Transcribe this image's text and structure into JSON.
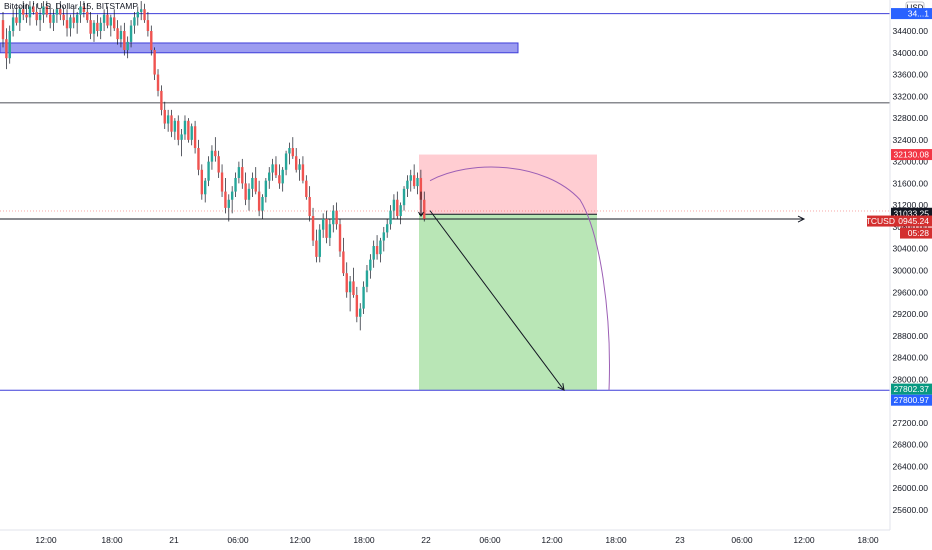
{
  "header": {
    "symbol_title": "Bitcoin / U.S. Dollar, 15, BITSTAMP"
  },
  "axis": {
    "currency_badge": "USD",
    "y_ticks": [
      "34400.00",
      "34000.00",
      "33600.00",
      "33200.00",
      "32800.00",
      "32400.00",
      "32000.00",
      "31600.00",
      "31200.00",
      "30800.00",
      "30400.00",
      "30000.00",
      "29600.00",
      "29200.00",
      "28800.00",
      "28400.00",
      "28000.00",
      "27600.00",
      "27200.00",
      "26800.00",
      "26400.00",
      "26000.00",
      "25600.00"
    ],
    "x_ticks": [
      "12:00",
      "18:00",
      "21",
      "06:00",
      "12:00",
      "18:00",
      "22",
      "06:00",
      "12:00",
      "18:00",
      "23",
      "06:00",
      "12:00",
      "18:00"
    ]
  },
  "price_tags": {
    "top_line": {
      "text": "34...1",
      "color": "#2962ff"
    },
    "stop_loss": {
      "text": "32130.08",
      "color": "#f23645"
    },
    "entry": {
      "text": "31033.25",
      "color": "#131722"
    },
    "symbol": {
      "text": "BTCUSD",
      "color": "#d32f2f"
    },
    "current": {
      "text": "30945.24",
      "color": "#d32f2f"
    },
    "countdown": {
      "text": "05:28",
      "color": "#d32f2f"
    },
    "target": {
      "text": "27802.37",
      "color": "#089981"
    },
    "support": {
      "text": "27800.97",
      "color": "#2962ff"
    }
  },
  "colors": {
    "up_candle": "#26a69a",
    "down_candle": "#ef5350",
    "wick": "#131722",
    "risk_zone": "#ffcdd2",
    "reward_zone": "#b9e6b6",
    "line_blue": "#3f3fd9",
    "zone_blue": "#9c9cf0",
    "arc": "#9c5fb5"
  },
  "chart_data": {
    "type": "candlestick",
    "title": "Bitcoin / U.S. Dollar, 15, BITSTAMP",
    "ylim": [
      25300,
      34950
    ],
    "y_scale": {
      "anchor_price_a": 34400,
      "anchor_price_b": 25600
    },
    "grid": false,
    "horizontal_levels": [
      {
        "price": 34720,
        "color": "blue",
        "label": "34...1"
      },
      {
        "price": 33080,
        "color": "black"
      },
      {
        "price": 30945.24,
        "color": "black",
        "style": "arrow-ray"
      },
      {
        "price": 27800.97,
        "color": "blue",
        "label": "27800.97"
      }
    ],
    "zone": {
      "price_top": 34180,
      "price_bottom": 34000,
      "color": "blue"
    },
    "position": {
      "type": "short",
      "entry": 31033.25,
      "stop": 32130.08,
      "target": 27802.37
    },
    "candles_ohlc": [
      [
        34600,
        34750,
        34100,
        34250
      ],
      [
        34250,
        34450,
        33700,
        33900
      ],
      [
        33900,
        34500,
        33800,
        34400
      ],
      [
        34400,
        34800,
        34300,
        34650
      ],
      [
        34650,
        34900,
        34500,
        34550
      ],
      [
        34550,
        34850,
        34400,
        34800
      ],
      [
        34800,
        34950,
        34600,
        34700
      ],
      [
        34700,
        34900,
        34550,
        34650
      ],
      [
        34650,
        34950,
        34500,
        34850
      ],
      [
        34850,
        34950,
        34700,
        34750
      ],
      [
        34750,
        34900,
        34500,
        34600
      ],
      [
        34600,
        34800,
        34400,
        34700
      ],
      [
        34700,
        34950,
        34550,
        34850
      ],
      [
        34850,
        34950,
        34650,
        34700
      ],
      [
        34700,
        34900,
        34450,
        34550
      ],
      [
        34550,
        34800,
        34400,
        34700
      ],
      [
        34700,
        34900,
        34550,
        34800
      ],
      [
        34800,
        34950,
        34600,
        34700
      ],
      [
        34700,
        34850,
        34500,
        34600
      ],
      [
        34600,
        34800,
        34300,
        34450
      ],
      [
        34450,
        34700,
        34300,
        34650
      ],
      [
        34650,
        34850,
        34450,
        34550
      ],
      [
        34550,
        34750,
        34350,
        34700
      ],
      [
        34700,
        34950,
        34550,
        34850
      ],
      [
        34850,
        34950,
        34650,
        34750
      ],
      [
        34750,
        34900,
        34550,
        34600
      ],
      [
        34600,
        34750,
        34250,
        34350
      ],
      [
        34350,
        34600,
        34200,
        34550
      ],
      [
        34550,
        34700,
        34300,
        34400
      ],
      [
        34400,
        34650,
        34250,
        34550
      ],
      [
        34550,
        34800,
        34400,
        34700
      ],
      [
        34700,
        34850,
        34450,
        34500
      ],
      [
        34500,
        34700,
        34300,
        34650
      ],
      [
        34650,
        34800,
        34400,
        34450
      ],
      [
        34450,
        34600,
        34150,
        34250
      ],
      [
        34250,
        34500,
        34100,
        34400
      ],
      [
        34400,
        34550,
        33950,
        34050
      ],
      [
        34050,
        34300,
        33900,
        34200
      ],
      [
        34200,
        34600,
        34100,
        34500
      ],
      [
        34500,
        34750,
        34350,
        34650
      ],
      [
        34650,
        34850,
        34500,
        34750
      ],
      [
        34750,
        34950,
        34600,
        34800
      ],
      [
        34800,
        34900,
        34550,
        34600
      ],
      [
        34600,
        34750,
        34300,
        34400
      ],
      [
        34400,
        34500,
        33950,
        34050
      ],
      [
        34050,
        34100,
        33500,
        33600
      ],
      [
        33600,
        33700,
        33200,
        33300
      ],
      [
        33300,
        33400,
        32850,
        32950
      ],
      [
        32950,
        33100,
        32600,
        32700
      ],
      [
        32700,
        32950,
        32550,
        32850
      ],
      [
        32850,
        32950,
        32450,
        32550
      ],
      [
        32550,
        32800,
        32400,
        32750
      ],
      [
        32750,
        32850,
        32300,
        32400
      ],
      [
        32400,
        32600,
        32100,
        32500
      ],
      [
        32500,
        32850,
        32400,
        32750
      ],
      [
        32750,
        32800,
        32350,
        32400
      ],
      [
        32400,
        32700,
        32300,
        32650
      ],
      [
        32650,
        32750,
        32150,
        32250
      ],
      [
        32250,
        32400,
        31750,
        31850
      ],
      [
        31850,
        31950,
        31300,
        31400
      ],
      [
        31400,
        31700,
        31250,
        31650
      ],
      [
        31650,
        32100,
        31550,
        32000
      ],
      [
        32000,
        32300,
        31850,
        32200
      ],
      [
        32200,
        32450,
        32000,
        32100
      ],
      [
        32100,
        32200,
        31700,
        31800
      ],
      [
        31800,
        31950,
        31350,
        31450
      ],
      [
        31450,
        31700,
        31050,
        31150
      ],
      [
        31150,
        31400,
        30900,
        31300
      ],
      [
        31300,
        31550,
        31050,
        31450
      ],
      [
        31450,
        31800,
        31350,
        31700
      ],
      [
        31700,
        32000,
        31600,
        31900
      ],
      [
        31900,
        32050,
        31500,
        31600
      ],
      [
        31600,
        31800,
        31200,
        31300
      ],
      [
        31300,
        31600,
        31100,
        31500
      ],
      [
        31500,
        31800,
        31350,
        31700
      ],
      [
        31700,
        31900,
        31400,
        31450
      ],
      [
        31450,
        31650,
        31000,
        31100
      ],
      [
        31100,
        31400,
        30950,
        31350
      ],
      [
        31350,
        31700,
        31250,
        31650
      ],
      [
        31650,
        31900,
        31500,
        31800
      ],
      [
        31800,
        32050,
        31650,
        31950
      ],
      [
        31950,
        32100,
        31700,
        31750
      ],
      [
        31750,
        31950,
        31500,
        31600
      ],
      [
        31600,
        31900,
        31450,
        31850
      ],
      [
        31850,
        32200,
        31750,
        32150
      ],
      [
        32150,
        32350,
        31950,
        32250
      ],
      [
        32250,
        32450,
        32050,
        32100
      ],
      [
        32100,
        32250,
        31800,
        31850
      ],
      [
        31850,
        32050,
        31650,
        31950
      ],
      [
        31950,
        32100,
        31600,
        31650
      ],
      [
        31650,
        31750,
        31300,
        31350
      ],
      [
        31350,
        31550,
        30900,
        31000
      ],
      [
        31000,
        31150,
        30450,
        30550
      ],
      [
        30550,
        30750,
        30150,
        30250
      ],
      [
        30250,
        30850,
        30150,
        30750
      ],
      [
        30750,
        31050,
        30600,
        30950
      ],
      [
        30950,
        31100,
        30500,
        30600
      ],
      [
        30600,
        30950,
        30450,
        30850
      ],
      [
        30850,
        31200,
        30700,
        31100
      ],
      [
        31100,
        31250,
        30750,
        30850
      ],
      [
        30850,
        30950,
        30250,
        30350
      ],
      [
        30350,
        30600,
        29900,
        29950
      ],
      [
        29950,
        30150,
        29500,
        29600
      ],
      [
        29600,
        29900,
        29250,
        29800
      ],
      [
        29800,
        30050,
        29500,
        29550
      ],
      [
        29550,
        29700,
        29050,
        29150
      ],
      [
        29150,
        29400,
        28900,
        29300
      ],
      [
        29300,
        29800,
        29200,
        29700
      ],
      [
        29700,
        30100,
        29600,
        30000
      ],
      [
        30000,
        30300,
        29850,
        30200
      ],
      [
        30200,
        30550,
        30050,
        30450
      ],
      [
        30450,
        30650,
        30200,
        30300
      ],
      [
        30300,
        30600,
        30150,
        30550
      ],
      [
        30550,
        30800,
        30350,
        30700
      ],
      [
        30700,
        30950,
        30600,
        30850
      ],
      [
        30850,
        31200,
        30750,
        31100
      ],
      [
        31100,
        31400,
        30950,
        31300
      ],
      [
        31300,
        31450,
        30950,
        31000
      ],
      [
        31000,
        31250,
        30850,
        31200
      ],
      [
        31200,
        31550,
        31100,
        31500
      ],
      [
        31500,
        31750,
        31350,
        31650
      ],
      [
        31650,
        31850,
        31450,
        31750
      ],
      [
        31750,
        31950,
        31500,
        31550
      ],
      [
        31550,
        31800,
        31400,
        31700
      ],
      [
        31700,
        31850,
        31200,
        31300
      ],
      [
        31300,
        31450,
        30900,
        30950
      ]
    ]
  }
}
